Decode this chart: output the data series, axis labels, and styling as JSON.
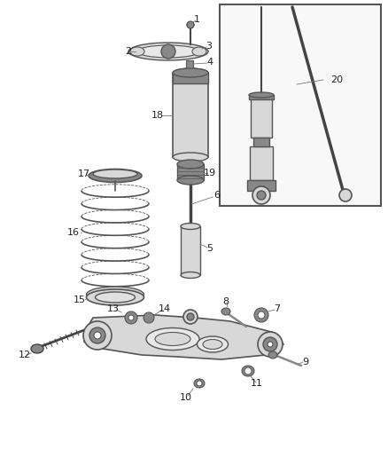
{
  "bg_color": "#ffffff",
  "line_color": "#555555",
  "part_fill": "#d8d8d8",
  "part_dark": "#888888",
  "part_darker": "#444444",
  "inset_bg": "#f0f0f0",
  "inset_border": "#555555",
  "label_color": "#222222",
  "fig_width": 4.38,
  "fig_height": 5.33,
  "dpi": 100
}
